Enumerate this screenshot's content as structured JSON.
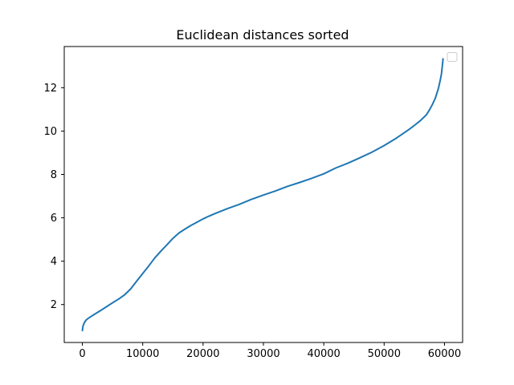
{
  "chart_data": {
    "type": "line",
    "title": "Euclidean distances sorted",
    "xlabel": "",
    "ylabel": "",
    "xlim": [
      -3000,
      63000
    ],
    "ylim": [
      0.25,
      13.9
    ],
    "xticks": [
      0,
      10000,
      20000,
      30000,
      40000,
      50000,
      60000
    ],
    "xtick_labels": [
      "0",
      "10000",
      "20000",
      "30000",
      "40000",
      "50000",
      "60000"
    ],
    "yticks": [
      2,
      4,
      6,
      8,
      10,
      12
    ],
    "ytick_labels": [
      "2",
      "4",
      "6",
      "8",
      "10",
      "12"
    ],
    "grid": false,
    "legend": {
      "placement": "top-right",
      "entries": []
    },
    "series": [
      {
        "color": "#1f77b4",
        "x": [
          0,
          100,
          300,
          600,
          1000,
          1500,
          2000,
          3000,
          4000,
          5000,
          6000,
          7000,
          8000,
          9000,
          10000,
          11000,
          12000,
          13000,
          14000,
          15000,
          16000,
          17000,
          18000,
          19000,
          20000,
          21000,
          22000,
          24000,
          26000,
          28000,
          30000,
          32000,
          34000,
          36000,
          38000,
          40000,
          42000,
          44000,
          46000,
          48000,
          50000,
          52000,
          54000,
          55000,
          56000,
          57000,
          57500,
          58000,
          58500,
          59000,
          59300,
          59500,
          59600,
          59700,
          59750
        ],
        "y": [
          0.8,
          1.0,
          1.15,
          1.28,
          1.37,
          1.46,
          1.55,
          1.72,
          1.9,
          2.08,
          2.25,
          2.45,
          2.72,
          3.08,
          3.43,
          3.78,
          4.15,
          4.46,
          4.75,
          5.05,
          5.3,
          5.48,
          5.65,
          5.8,
          5.95,
          6.08,
          6.2,
          6.42,
          6.62,
          6.85,
          7.05,
          7.24,
          7.45,
          7.63,
          7.82,
          8.03,
          8.3,
          8.52,
          8.77,
          9.03,
          9.33,
          9.67,
          10.05,
          10.26,
          10.48,
          10.75,
          10.97,
          11.23,
          11.53,
          11.98,
          12.35,
          12.65,
          12.9,
          13.15,
          13.33
        ]
      }
    ]
  }
}
